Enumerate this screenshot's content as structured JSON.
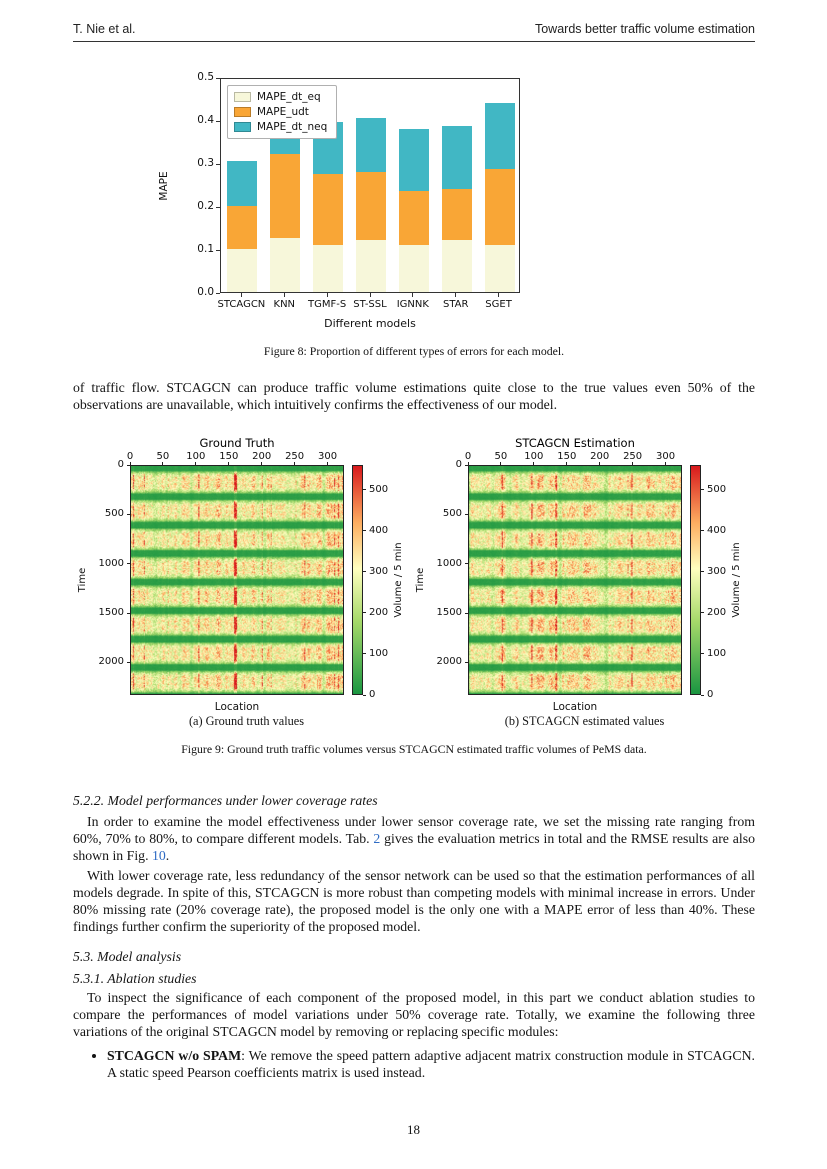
{
  "header": {
    "left": "T. Nie et al.",
    "right": "Towards better traffic volume estimation"
  },
  "figure8": {
    "caption": "Figure 8: Proportion of different types of errors for each model."
  },
  "para_top": "of traffic flow. STCAGCN can produce traffic volume estimations quite close to the true values even 50% of the observations are unavailable, which intuitively confirms the effectiveness of our model.",
  "figure9": {
    "sub_a": "(a) Ground truth values",
    "sub_b": "(b) STCAGCN estimated values",
    "caption": "Figure 9: Ground truth traffic volumes versus STCAGCN estimated traffic volumes of PeMS data."
  },
  "section522": {
    "heading": "5.2.2. Model performances under lower coverage rates",
    "p1": {
      "t1": "In order to examine the model effectiveness under lower sensor coverage rate, we set the missing rate ranging from 60%, 70% to 80%, to compare different models. Tab. ",
      "link1": "2",
      "t2": " gives the evaluation metrics in total and the RMSE results are also shown in Fig. ",
      "link2": "10",
      "t3": "."
    },
    "p2": "With lower coverage rate, less redundancy of the sensor network can be used so that the estimation performances of all models degrade. In spite of this, STCAGCN is more robust than competing models with minimal increase in errors. Under 80% missing rate (20% coverage rate), the proposed model is the only one with a MAPE error of less than 40%. These findings further confirm the superiority of the proposed model."
  },
  "section53": {
    "heading": "5.3. Model analysis"
  },
  "section531": {
    "heading": "5.3.1. Ablation studies",
    "p1": "To inspect the significance of each component of the proposed model, in this part we conduct ablation studies to compare the performances of model variations under 50% coverage rate. Totally, we examine the following three variations of the original STCAGCN model by removing or replacing specific modules:"
  },
  "bullet1": {
    "label": "STCAGCN w/o SPAM",
    "text": ": We remove the speed pattern adaptive adjacent matrix construction module in STCAGCN. A static speed Pearson coefficients matrix is used instead."
  },
  "page_number": "18",
  "chart_data": [
    {
      "type": "bar",
      "stacked": true,
      "categories": [
        "STCAGCN",
        "KNN",
        "TGMF-S",
        "ST-SSL",
        "IGNNK",
        "STAR",
        "SGET"
      ],
      "series": [
        {
          "name": "MAPE_dt_eq",
          "color": "#f7f7da",
          "values": [
            0.1,
            0.125,
            0.11,
            0.12,
            0.11,
            0.12,
            0.11
          ]
        },
        {
          "name": "MAPE_udt",
          "color": "#f9a636",
          "values": [
            0.1,
            0.195,
            0.165,
            0.16,
            0.125,
            0.12,
            0.175
          ]
        },
        {
          "name": "MAPE_dt_neq",
          "color": "#41b7c4",
          "values": [
            0.105,
            0.145,
            0.12,
            0.125,
            0.145,
            0.145,
            0.155
          ]
        }
      ],
      "totals": [
        0.305,
        0.465,
        0.395,
        0.405,
        0.38,
        0.385,
        0.44
      ],
      "xlabel": "Different models",
      "ylabel": "MAPE",
      "ylim": [
        0,
        0.5
      ],
      "yticks": [
        0.0,
        0.1,
        0.2,
        0.3,
        0.4,
        0.5
      ],
      "legend_position": "upper left",
      "grid": false
    },
    {
      "type": "heatmap",
      "title": "Ground Truth",
      "xlabel": "Location",
      "ylabel": "Time",
      "x_ticks": [
        0,
        50,
        100,
        150,
        200,
        250,
        300
      ],
      "y_ticks": [
        0,
        500,
        1000,
        1500,
        2000
      ],
      "x_range": [
        0,
        325
      ],
      "y_range": [
        0,
        2330
      ],
      "colorbar": {
        "label": "Volume / 5 min",
        "ticks": [
          0,
          100,
          200,
          300,
          400,
          500
        ],
        "range": [
          0,
          560
        ]
      },
      "colormap": "green-yellow-red (RdYlGn reversed): low volume green at night bands, high volume yellow/red in daily peak bands",
      "colormap_stops": [
        "#1a9641",
        "#a6d96a",
        "#ffffbf",
        "#fdae61",
        "#d7191c"
      ],
      "pattern": {
        "daily_periods": 8,
        "seed": 42,
        "hot_column_at": 160
      }
    },
    {
      "type": "heatmap",
      "title": "STCAGCN Estimation",
      "xlabel": "Location",
      "ylabel": "Time",
      "x_ticks": [
        0,
        50,
        100,
        150,
        200,
        250,
        300
      ],
      "y_ticks": [
        0,
        500,
        1000,
        1500,
        2000
      ],
      "x_range": [
        0,
        325
      ],
      "y_range": [
        0,
        2330
      ],
      "colorbar": {
        "label": "Volume / 5 min",
        "ticks": [
          0,
          100,
          200,
          300,
          400,
          500
        ],
        "range": [
          0,
          560
        ]
      },
      "colormap": "green-yellow-red (RdYlGn reversed): low volume green at night bands, high volume yellow/red in daily peak bands",
      "colormap_stops": [
        "#1a9641",
        "#a6d96a",
        "#ffffbf",
        "#fdae61",
        "#d7191c"
      ],
      "pattern": {
        "daily_periods": 8,
        "seed": 7,
        "hot_column_at": null
      }
    }
  ]
}
